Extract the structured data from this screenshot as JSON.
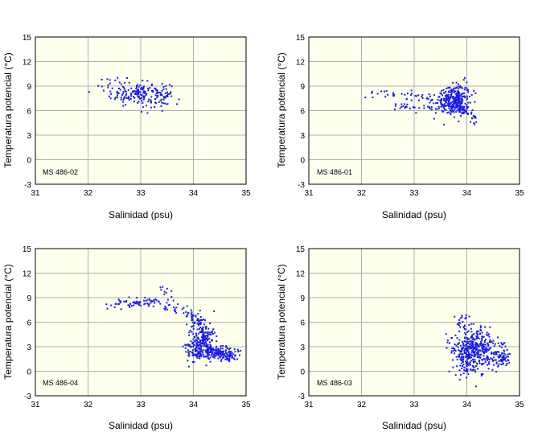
{
  "colors": {
    "plot_bg": "#ffffee",
    "grid": "#b0b0b0",
    "points": "#1c1ce0",
    "frame": "#000000"
  },
  "chart_data": [
    {
      "type": "scatter",
      "label": "MS 486-02",
      "xlabel": "Salinidad (psu)",
      "ylabel": "Temperatura potencial (°C)",
      "xlim": [
        31,
        35
      ],
      "ylim": [
        -3,
        15
      ],
      "xticks": [
        "31",
        "32",
        "33",
        "34",
        "35"
      ],
      "yticks": [
        "-3",
        "0",
        "3",
        "6",
        "9",
        "12",
        "15"
      ],
      "clusters": [
        {
          "cx": 33.0,
          "cy": 8.0,
          "sx": 0.28,
          "sy": 0.75,
          "n": 150
        },
        {
          "cx": 32.6,
          "cy": 9.0,
          "sx": 0.2,
          "sy": 0.55,
          "n": 30
        },
        {
          "cx": 33.45,
          "cy": 7.7,
          "sx": 0.12,
          "sy": 0.4,
          "n": 25
        }
      ],
      "lines": []
    },
    {
      "type": "scatter",
      "label": "MS 486-01",
      "xlabel": "Salinidad (psu)",
      "ylabel": "Temperatura potencial (°C)",
      "xlim": [
        31,
        35
      ],
      "ylim": [
        -3,
        15
      ],
      "xticks": [
        "31",
        "32",
        "33",
        "34",
        "35"
      ],
      "yticks": [
        "-3",
        "0",
        "3",
        "6",
        "9",
        "12",
        "15"
      ],
      "clusters": [
        {
          "cx": 33.8,
          "cy": 7.3,
          "sx": 0.13,
          "sy": 1.0,
          "n": 260
        },
        {
          "cx": 33.55,
          "cy": 7.5,
          "sx": 0.15,
          "sy": 0.6,
          "n": 40
        }
      ],
      "lines": [
        {
          "points": [
            [
              32.1,
              8.0
            ],
            [
              32.5,
              8.0
            ],
            [
              33.0,
              7.7
            ],
            [
              33.5,
              7.4
            ]
          ],
          "n": 40,
          "j": 0.15
        },
        {
          "points": [
            [
              32.6,
              6.6
            ],
            [
              33.0,
              6.5
            ],
            [
              33.5,
              6.3
            ],
            [
              34.0,
              6.0
            ],
            [
              34.15,
              5.2
            ],
            [
              34.12,
              4.2
            ]
          ],
          "n": 70,
          "j": 0.12
        }
      ]
    },
    {
      "type": "scatter",
      "label": "MS 486-04",
      "xlabel": "Salinidad (psu)",
      "ylabel": "Temperatura potencial (°C)",
      "xlim": [
        31,
        35
      ],
      "ylim": [
        -3,
        15
      ],
      "xticks": [
        "31",
        "32",
        "33",
        "34",
        "35"
      ],
      "yticks": [
        "-3",
        "0",
        "3",
        "6",
        "9",
        "12",
        "15"
      ],
      "clusters": [
        {
          "cx": 34.15,
          "cy": 4.0,
          "sx": 0.13,
          "sy": 1.3,
          "n": 180
        },
        {
          "cx": 34.45,
          "cy": 2.2,
          "sx": 0.2,
          "sy": 0.45,
          "n": 160
        },
        {
          "cx": 34.0,
          "cy": 2.3,
          "sx": 0.1,
          "sy": 0.7,
          "n": 40
        }
      ],
      "lines": [
        {
          "points": [
            [
              32.4,
              8.3
            ],
            [
              32.9,
              8.3
            ],
            [
              33.3,
              8.4
            ],
            [
              33.6,
              8.0
            ],
            [
              33.9,
              7.2
            ],
            [
              34.1,
              6.0
            ],
            [
              34.2,
              4.5
            ],
            [
              34.25,
              3.0
            ],
            [
              34.4,
              2.2
            ],
            [
              34.7,
              1.8
            ],
            [
              34.75,
              1.2
            ]
          ],
          "n": 180,
          "j": 0.15
        },
        {
          "points": [
            [
              33.3,
              10.2
            ],
            [
              33.6,
              9.5
            ]
          ],
          "n": 8,
          "j": 0.1
        }
      ]
    },
    {
      "type": "scatter",
      "label": "MS 486-03",
      "xlabel": "Salinidad (psu)",
      "ylabel": "Temperatura potencial (°C)",
      "xlim": [
        31,
        35
      ],
      "ylim": [
        -3,
        15
      ],
      "xticks": [
        "31",
        "32",
        "33",
        "34",
        "35"
      ],
      "yticks": [
        "-3",
        "0",
        "3",
        "6",
        "9",
        "12",
        "15"
      ],
      "clusters": [
        {
          "cx": 34.15,
          "cy": 2.5,
          "sx": 0.22,
          "sy": 1.3,
          "n": 420
        },
        {
          "cx": 33.95,
          "cy": 5.6,
          "sx": 0.1,
          "sy": 0.8,
          "n": 25
        },
        {
          "cx": 34.65,
          "cy": 1.6,
          "sx": 0.07,
          "sy": 0.45,
          "n": 60
        }
      ],
      "lines": [
        {
          "points": [
            [
              33.9,
              -0.8
            ],
            [
              34.0,
              0.5
            ],
            [
              34.2,
              1.2
            ]
          ],
          "n": 20,
          "j": 0.15
        }
      ]
    }
  ]
}
